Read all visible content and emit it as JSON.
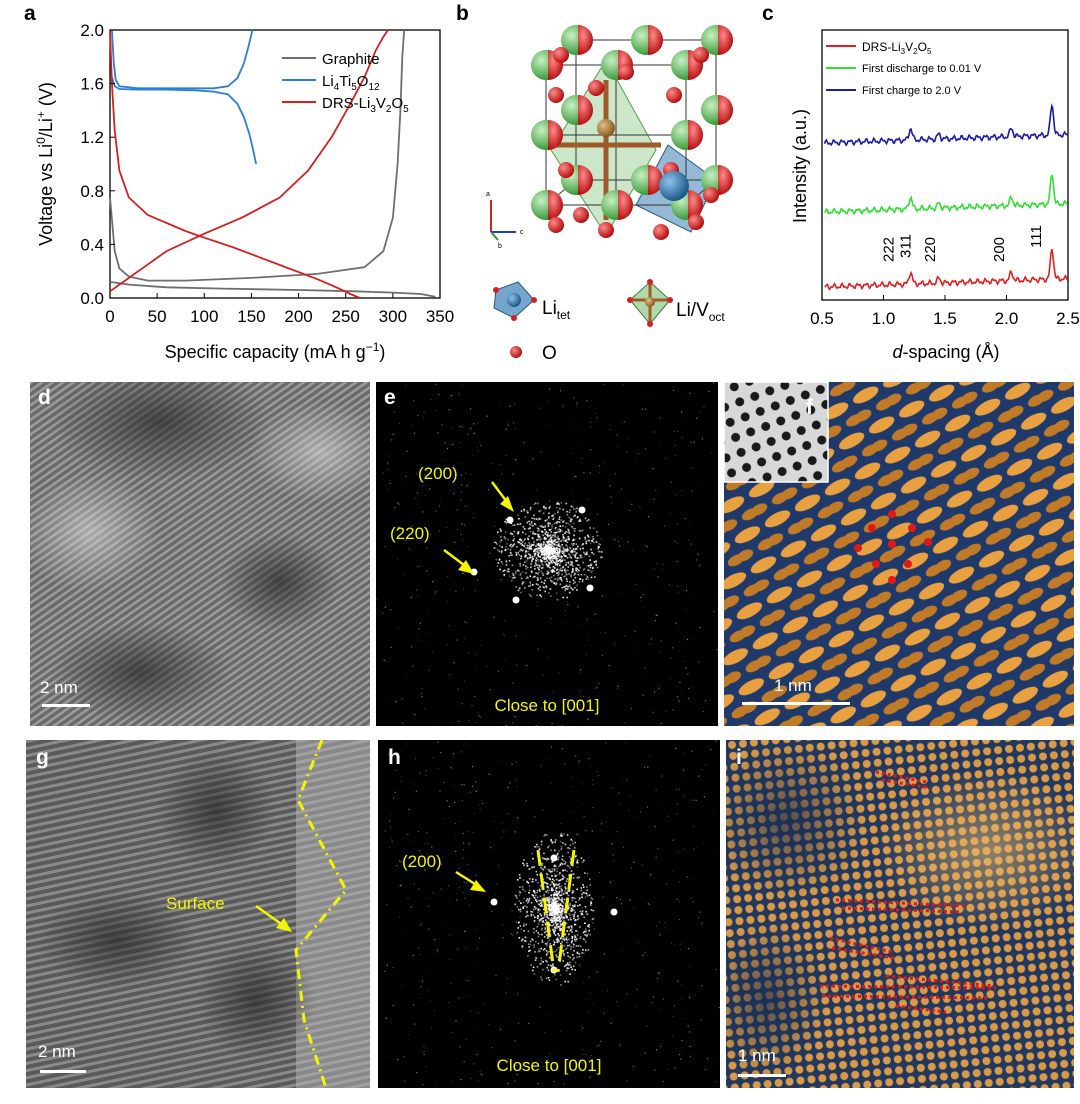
{
  "panels": {
    "a": "a",
    "b": "b",
    "c": "c",
    "d": "d",
    "e": "e",
    "f": "f",
    "g": "g",
    "h": "h",
    "i": "i"
  },
  "panel_b": {
    "legend": {
      "li_tet": "Li",
      "li_tet_sub": "tet",
      "li_v_oct": "Li/V",
      "li_v_oct_sub": "oct",
      "oxygen": "O"
    },
    "axes_labels": {
      "a": "a",
      "b": "b",
      "c": "c"
    },
    "colors": {
      "oxygen": "#d81e1e",
      "li_tet": "#3b7fb5",
      "li_v_oct": "#8ec88a"
    }
  },
  "panel_d": {
    "scalebar": "2 nm"
  },
  "panel_e": {
    "label_200": "(200)",
    "label_220": "(220)",
    "zone": "Close to [001]"
  },
  "panel_f": {
    "scalebar": "1 nm"
  },
  "panel_g": {
    "scalebar": "2 nm",
    "surface": "Surface"
  },
  "panel_h": {
    "label_200": "(200)",
    "zone": "Close to [001]"
  },
  "panel_i": {
    "scalebar": "1 nm"
  },
  "chart_data": [
    {
      "panel": "a",
      "type": "line",
      "xlabel": "Specific capacity (mA h g⁻¹)",
      "ylabel": "Voltage vs Li⁰/Li⁺ (V)",
      "xlim": [
        0,
        350
      ],
      "ylim": [
        0,
        2.0
      ],
      "xticks": [
        "0",
        "50",
        "100",
        "150",
        "200",
        "250",
        "300",
        "350"
      ],
      "yticks": [
        "0.0",
        "0.4",
        "0.8",
        "1.2",
        "1.6",
        "2.0"
      ],
      "legend_position": "top-right",
      "series": [
        {
          "name": "Graphite",
          "color": "#6e6e6e",
          "x": [
            0,
            5,
            10,
            20,
            40,
            80,
            150,
            220,
            270,
            290,
            300,
            305,
            308,
            310,
            312
          ],
          "y": [
            0.75,
            0.35,
            0.22,
            0.16,
            0.13,
            0.13,
            0.15,
            0.18,
            0.23,
            0.35,
            0.6,
            1.0,
            1.4,
            1.8,
            2.0
          ]
        },
        {
          "name": "Graphite",
          "color": "#6e6e6e",
          "x": [
            0,
            20,
            60,
            120,
            200,
            260,
            300,
            330,
            345
          ],
          "y": [
            0.12,
            0.1,
            0.08,
            0.07,
            0.06,
            0.05,
            0.04,
            0.03,
            0.01
          ]
        },
        {
          "name": "Li4Ti5O12",
          "color": "#2a7fd4",
          "x": [
            2,
            4,
            6,
            10,
            30,
            60,
            90,
            110,
            125,
            135,
            142,
            147,
            151
          ],
          "y": [
            2.0,
            1.75,
            1.63,
            1.58,
            1.565,
            1.565,
            1.565,
            1.565,
            1.58,
            1.64,
            1.75,
            1.88,
            2.0
          ]
        },
        {
          "name": "Li4Ti5O12",
          "color": "#2a7fd4",
          "x": [
            2,
            5,
            10,
            30,
            60,
            90,
            110,
            125,
            135,
            142,
            148,
            152,
            155
          ],
          "y": [
            1.65,
            1.58,
            1.56,
            1.555,
            1.555,
            1.55,
            1.54,
            1.52,
            1.45,
            1.35,
            1.22,
            1.1,
            1.0
          ]
        },
        {
          "name": "DRS-Li3V2O5",
          "color": "#d42020",
          "x": [
            0,
            2,
            5,
            10,
            20,
            40,
            60,
            80,
            100,
            130,
            160,
            190,
            220,
            240,
            255,
            265
          ],
          "y": [
            2.0,
            1.6,
            1.25,
            0.95,
            0.75,
            0.62,
            0.56,
            0.5,
            0.45,
            0.38,
            0.3,
            0.22,
            0.14,
            0.08,
            0.03,
            0.0
          ]
        },
        {
          "name": "DRS-Li3V2O5",
          "color": "#d42020",
          "x": [
            0,
            10,
            30,
            60,
            100,
            140,
            180,
            210,
            235,
            255,
            270,
            282,
            290,
            295
          ],
          "y": [
            0.05,
            0.1,
            0.2,
            0.35,
            0.48,
            0.6,
            0.75,
            0.95,
            1.2,
            1.45,
            1.65,
            1.85,
            1.95,
            2.0
          ]
        }
      ],
      "legend": [
        {
          "name": "Graphite",
          "color": "#6e6e6e"
        },
        {
          "name": "Li",
          "sub1": "4",
          "mid": "Ti",
          "sub2": "5",
          "mid2": "O",
          "sub3": "12",
          "color": "#2a7fd4"
        },
        {
          "name": "DRS-Li",
          "sub1": "3",
          "mid": "V",
          "sub2": "2",
          "mid2": "O",
          "sub3": "5",
          "color": "#d42020"
        }
      ]
    },
    {
      "panel": "c",
      "type": "line",
      "xlabel": "d-spacing (Å)",
      "ylabel": "Intensity (a.u.)",
      "xlim": [
        0.5,
        2.5
      ],
      "xticks": [
        "0.5",
        "1.0",
        "1.5",
        "2.0",
        "2.5"
      ],
      "peak_labels": [
        "222",
        "311",
        "220",
        "200",
        "111"
      ],
      "legend_position": "top-left",
      "series": [
        {
          "name": "DRS-Li3V2O5",
          "color": "#e02020",
          "offset": 2
        },
        {
          "name": "First discharge to 0.01 V",
          "color": "#33dd33",
          "offset": 1
        },
        {
          "name": "First charge to 2.0 V",
          "color": "#1a1aaa",
          "offset": 0
        }
      ],
      "legend": [
        {
          "name": "DRS-Li",
          "sub1": "3",
          "mid": "V",
          "sub2": "2",
          "mid2": "O",
          "sub3": "5",
          "color": "#e02020"
        },
        {
          "name": "First discharge to 0.01 V",
          "color": "#33dd33"
        },
        {
          "name": "First charge to 2.0 V",
          "color": "#1a1aaa"
        }
      ]
    }
  ]
}
